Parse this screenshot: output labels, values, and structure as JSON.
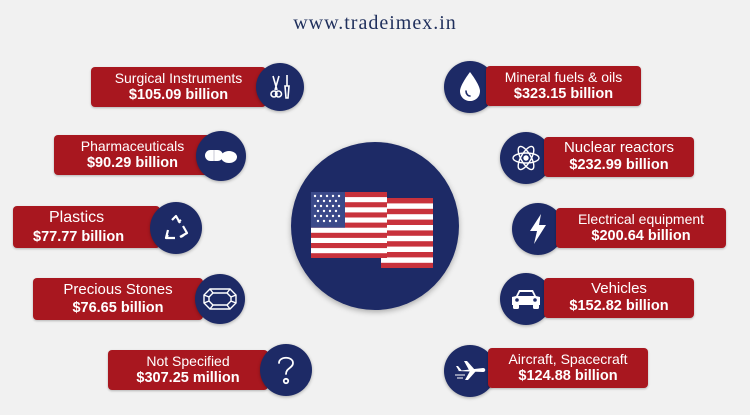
{
  "header": {
    "url": "www.tradeimex.in"
  },
  "colors": {
    "box_red": "#a8171f",
    "circle_navy": "#1d2a66",
    "background": "#f1f1f1"
  },
  "items": {
    "surgical": {
      "name": "Surgical Instruments",
      "value": "$105.09 billion",
      "icon": "scissors-scalpel-icon"
    },
    "pharma": {
      "name": "Pharmaceuticals",
      "value": "$90.29 billion",
      "icon": "pills-icon"
    },
    "plastics": {
      "name": "Plastics",
      "value": "$77.77 billion",
      "icon": "recycle-icon"
    },
    "stones": {
      "name": "Precious Stones",
      "value": "$76.65 billion",
      "icon": "gemstone-icon"
    },
    "unspecified": {
      "name": "Not Specified",
      "value": "$307.25 million",
      "icon": "question-mark-icon"
    },
    "mineral": {
      "name": "Mineral fuels & oils",
      "value": "$323.15 billion",
      "icon": "oil-drop-icon"
    },
    "nuclear": {
      "name": "Nuclear reactors",
      "value": "$232.99 billion",
      "icon": "atom-icon"
    },
    "electrical": {
      "name": "Electrical equipment",
      "value": "$200.64 billion",
      "icon": "lightning-icon"
    },
    "vehicles": {
      "name": "Vehicles",
      "value": "$152.82 billion",
      "icon": "car-icon"
    },
    "aircraft": {
      "name": "Aircraft, Spacecraft",
      "value": "$124.88 billion",
      "icon": "airplane-icon"
    }
  }
}
